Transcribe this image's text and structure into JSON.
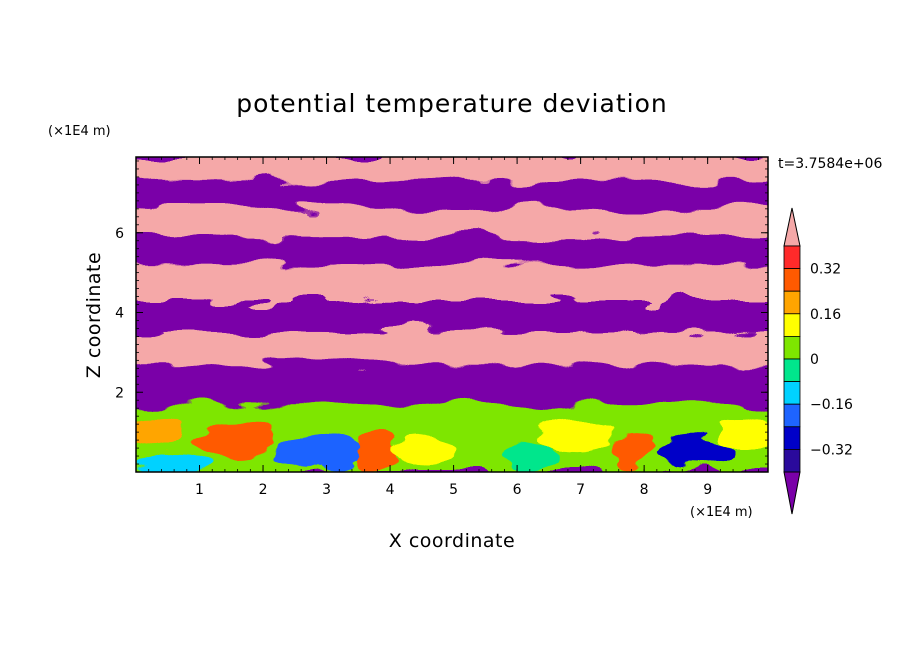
{
  "chart_data": {
    "type": "heatmap",
    "title": "potential temperature deviation",
    "xlabel": "X coordinate",
    "ylabel": "Z coordinate",
    "x_unit": "(×1E4 m)",
    "y_unit": "(×1E4 m)",
    "time_label": "t=3.7584e+06",
    "xlim": [
      0,
      9.95
    ],
    "ylim": [
      0,
      7.9
    ],
    "x_ticks": [
      1,
      2,
      3,
      4,
      5,
      6,
      7,
      8,
      9
    ],
    "y_ticks": [
      2,
      4,
      6
    ],
    "colorbar": {
      "levels": [
        -0.4,
        -0.32,
        -0.24,
        -0.16,
        -0.08,
        0,
        0.08,
        0.16,
        0.24,
        0.32,
        0.4
      ],
      "tick_labels": [
        "0.32",
        "0.16",
        "0",
        "−0.16",
        "−0.32"
      ],
      "tick_values": [
        0.32,
        0.16,
        0,
        -0.16,
        -0.32
      ],
      "colors": [
        "#7a00a8",
        "#2a0a9c",
        "#0000c8",
        "#1e64ff",
        "#00d2ff",
        "#00e68c",
        "#7ee600",
        "#ffff00",
        "#ffa500",
        "#ff5a00",
        "#ff2a2a",
        "#f5a8a8"
      ],
      "extend": "both"
    },
    "field_regions": [
      {
        "z_range": [
          7.3,
          7.9
        ],
        "value": 0.45
      },
      {
        "z_range": [
          6.6,
          7.3
        ],
        "value": -0.45
      },
      {
        "z_range": [
          5.9,
          6.6
        ],
        "value": 0.45
      },
      {
        "z_range": [
          5.2,
          5.9
        ],
        "value": -0.45
      },
      {
        "z_range": [
          4.3,
          5.2
        ],
        "value": 0.45
      },
      {
        "z_range": [
          3.5,
          4.3
        ],
        "value": -0.45
      },
      {
        "z_range": [
          2.7,
          3.5
        ],
        "value": 0.45
      },
      {
        "z_range": [
          1.7,
          2.7
        ],
        "value": -0.45
      },
      {
        "z_range": [
          0,
          1.7
        ],
        "value": 0.05
      }
    ]
  }
}
